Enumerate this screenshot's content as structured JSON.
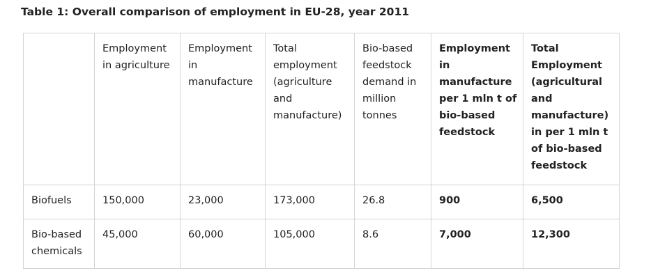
{
  "title": "Table 1: Overall comparison of employment in EU-28, year 2011",
  "table": {
    "headers": [
      "Employment in agriculture",
      "Employment in manufacture",
      "Total employment (agriculture and manufacture)",
      "Bio-based feedstock demand in million tonnes",
      "Employment in manufacture per 1 mln t of bio-based feedstock",
      "Total Employment (agricultural and manufacture) in per 1 mln t of bio-based feedstock"
    ],
    "rows": [
      [
        "Biofuels",
        "150,000",
        "23,000",
        "173,000",
        "26.8",
        "900",
        "6,500"
      ],
      [
        "Bio-based chemicals",
        "45,000",
        "60,000",
        "105,000",
        "8.6",
        "7,000",
        "12,300"
      ]
    ]
  }
}
